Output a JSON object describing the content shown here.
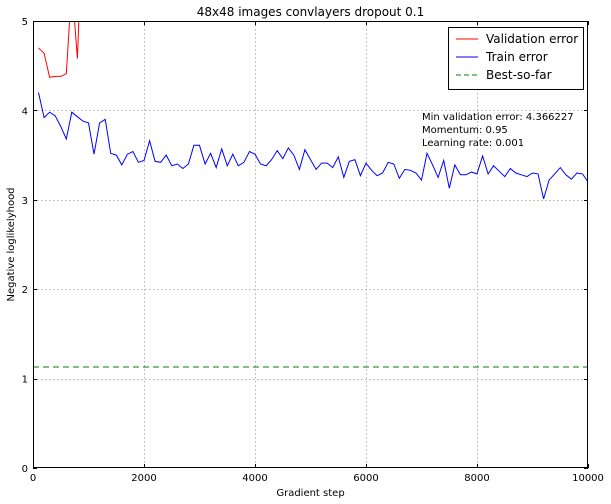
{
  "chart_data": {
    "type": "line",
    "title": "48x48 images convlayers dropout 0.1",
    "xlabel": "Gradient step",
    "ylabel": "Negative loglikelyhood",
    "xlim": [
      0,
      10000
    ],
    "ylim": [
      0,
      5
    ],
    "x_ticks": [
      0,
      2000,
      4000,
      6000,
      8000,
      10000
    ],
    "y_ticks": [
      0,
      1,
      2,
      3,
      4,
      5
    ],
    "grid": true,
    "legend_position": "top-right",
    "annotations": [
      "Min validation error: 4.366227",
      "Momentum: 0.95",
      "Learning rate: 0.001"
    ],
    "series": [
      {
        "name": "Validation error",
        "color": "#ff0000",
        "style": "solid",
        "x": [
          100,
          200,
          300,
          400,
          500,
          600,
          700,
          800,
          850
        ],
        "y": [
          4.7,
          4.64,
          4.37,
          4.38,
          4.38,
          4.41,
          5.4,
          4.58,
          5.4
        ]
      },
      {
        "name": "Train error",
        "color": "#0000ff",
        "style": "solid",
        "x": [
          100,
          200,
          300,
          400,
          500,
          600,
          700,
          800,
          900,
          1000,
          1100,
          1200,
          1300,
          1400,
          1500,
          1600,
          1700,
          1800,
          1900,
          2000,
          2100,
          2200,
          2300,
          2400,
          2500,
          2600,
          2700,
          2800,
          2900,
          3000,
          3100,
          3200,
          3300,
          3400,
          3500,
          3600,
          3700,
          3800,
          3900,
          4000,
          4100,
          4200,
          4300,
          4400,
          4500,
          4600,
          4700,
          4800,
          4900,
          5000,
          5100,
          5200,
          5300,
          5400,
          5500,
          5600,
          5700,
          5800,
          5900,
          6000,
          6100,
          6200,
          6300,
          6400,
          6500,
          6600,
          6700,
          6800,
          6900,
          7000,
          7100,
          7200,
          7300,
          7400,
          7500,
          7600,
          7700,
          7800,
          7900,
          8000,
          8100,
          8200,
          8300,
          8400,
          8500,
          8600,
          8700,
          8800,
          8900,
          9000,
          9100,
          9200,
          9300,
          9400,
          9500,
          9600,
          9700,
          9800,
          9900,
          10000
        ],
        "y": [
          4.2,
          3.92,
          3.98,
          3.94,
          3.82,
          3.68,
          3.98,
          3.93,
          3.88,
          3.86,
          3.51,
          3.86,
          3.9,
          3.52,
          3.5,
          3.39,
          3.51,
          3.54,
          3.42,
          3.44,
          3.66,
          3.43,
          3.42,
          3.5,
          3.38,
          3.4,
          3.35,
          3.4,
          3.61,
          3.61,
          3.4,
          3.52,
          3.36,
          3.57,
          3.38,
          3.51,
          3.38,
          3.42,
          3.54,
          3.51,
          3.4,
          3.38,
          3.45,
          3.55,
          3.46,
          3.58,
          3.5,
          3.34,
          3.56,
          3.45,
          3.34,
          3.41,
          3.41,
          3.36,
          3.48,
          3.25,
          3.43,
          3.45,
          3.27,
          3.41,
          3.33,
          3.27,
          3.3,
          3.42,
          3.4,
          3.24,
          3.34,
          3.33,
          3.3,
          3.22,
          3.52,
          3.39,
          3.25,
          3.44,
          3.13,
          3.39,
          3.28,
          3.28,
          3.31,
          3.29,
          3.49,
          3.29,
          3.38,
          3.32,
          3.26,
          3.35,
          3.3,
          3.28,
          3.26,
          3.3,
          3.29,
          3.01,
          3.22,
          3.29,
          3.36,
          3.28,
          3.23,
          3.3,
          3.29,
          3.2
        ]
      },
      {
        "name": "Best-so-far",
        "color": "#007f00",
        "style": "dashed",
        "x": [
          0,
          10000
        ],
        "y": [
          1.13,
          1.13
        ]
      }
    ]
  }
}
